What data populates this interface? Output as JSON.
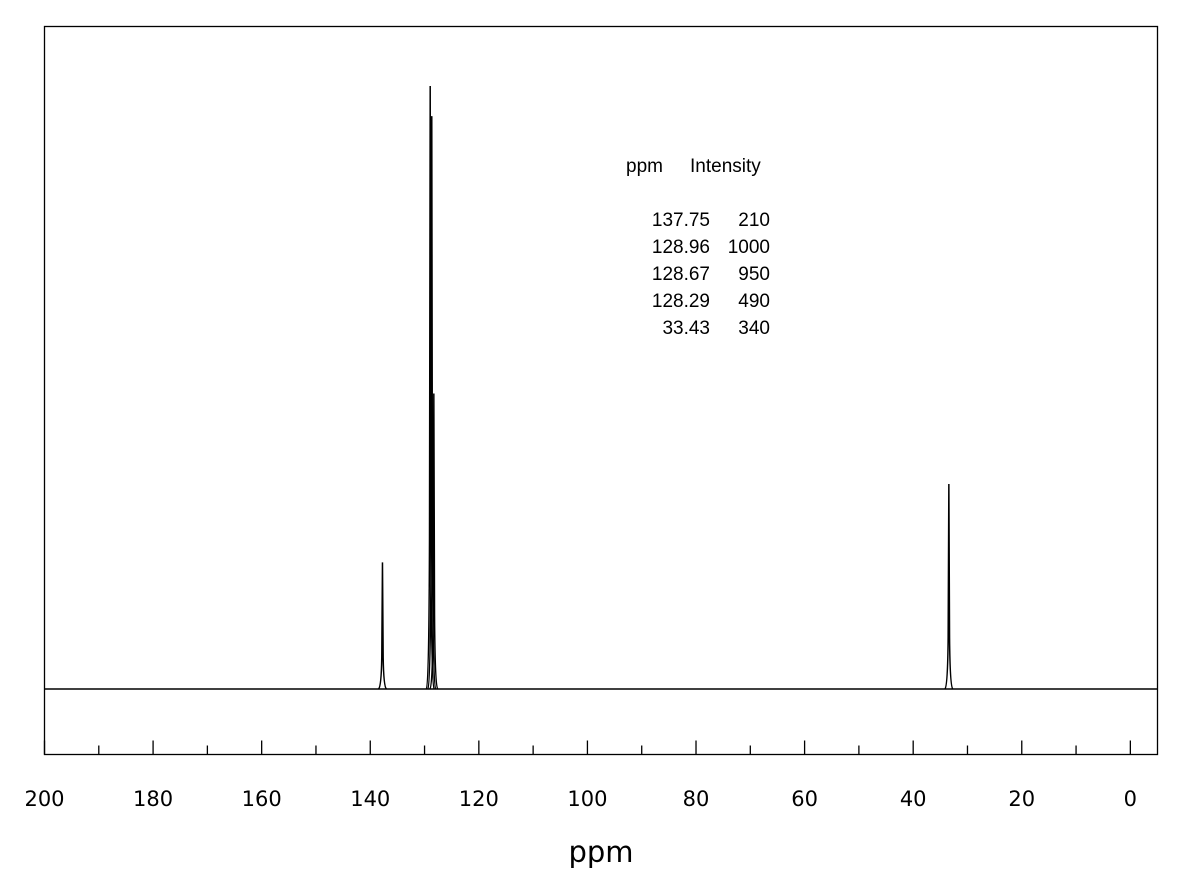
{
  "chart_data": {
    "type": "line",
    "title": "",
    "xlabel": "ppm",
    "ylabel": "",
    "xlim": [
      200,
      -5
    ],
    "x_reversed": true,
    "x_ticks": [
      200,
      180,
      160,
      140,
      120,
      100,
      80,
      60,
      40,
      20,
      0
    ],
    "x_tick_labels": [
      "200",
      "180",
      "160",
      "140",
      "120",
      "100",
      "80",
      "60",
      "40",
      "20",
      "0"
    ],
    "ylim": [
      0,
      1000
    ],
    "grid": false,
    "peaks": [
      {
        "ppm": 137.75,
        "intensity": 210
      },
      {
        "ppm": 128.96,
        "intensity": 1000
      },
      {
        "ppm": 128.67,
        "intensity": 950
      },
      {
        "ppm": 128.29,
        "intensity": 490
      },
      {
        "ppm": 33.43,
        "intensity": 340
      }
    ],
    "peak_table": {
      "header_ppm": "ppm",
      "header_intensity": "Intensity",
      "rows": [
        {
          "ppm": "137.75",
          "intensity": "210"
        },
        {
          "ppm": "128.96",
          "intensity": "1000"
        },
        {
          "ppm": "128.67",
          "intensity": "950"
        },
        {
          "ppm": "128.29",
          "intensity": "490"
        },
        {
          "ppm": "33.43",
          "intensity": "340"
        }
      ]
    }
  },
  "colors": {
    "line": "#000000",
    "background": "#ffffff"
  }
}
